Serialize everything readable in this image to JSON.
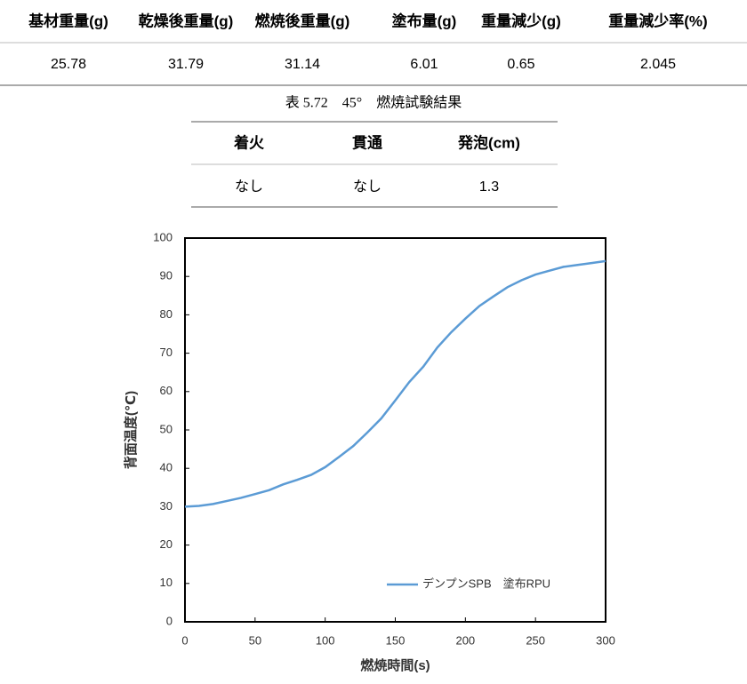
{
  "table1": {
    "header": [
      "基材重量(g)",
      "乾燥後重量(g)",
      "燃焼後重量(g)",
      "塗布量(g)",
      "重量減少(g)",
      "重量減少率(%)"
    ],
    "rows": [
      [
        "25.78",
        "31.79",
        "31.14",
        "6.01",
        "0.65",
        "2.045"
      ]
    ]
  },
  "caption": "表 5.72　45°　燃焼試験結果",
  "table2": {
    "header": [
      "着火",
      "貫通",
      "発泡(cm)"
    ],
    "rows": [
      [
        "なし",
        "なし",
        "1.3"
      ]
    ]
  },
  "chart_data": {
    "type": "line",
    "xlabel": "燃焼時間(s)",
    "ylabel": "背面温度(℃)",
    "x": [
      0,
      10,
      20,
      30,
      40,
      50,
      60,
      70,
      80,
      90,
      100,
      110,
      120,
      130,
      140,
      150,
      160,
      170,
      180,
      190,
      200,
      210,
      220,
      230,
      240,
      250,
      260,
      270,
      280,
      290,
      300
    ],
    "series": [
      {
        "name": "デンプンSPB　塗布RPU",
        "color": "#5b9bd5",
        "values": [
          30,
          30.2,
          30.7,
          31.5,
          32.3,
          33.3,
          34.3,
          35.8,
          37,
          38.3,
          40.3,
          43,
          45.8,
          49.3,
          53,
          57.7,
          62.5,
          66.5,
          71.5,
          75.5,
          79,
          82.3,
          84.8,
          87.2,
          89,
          90.5,
          91.5,
          92.5,
          93,
          93.5,
          94
        ]
      }
    ],
    "xlim": [
      0,
      300
    ],
    "xticks": [
      0,
      50,
      100,
      150,
      200,
      250,
      300
    ],
    "ylim": [
      0,
      100
    ],
    "yticks": [
      0,
      10,
      20,
      30,
      40,
      50,
      60,
      70,
      80,
      90,
      100
    ],
    "legend": "lower right"
  }
}
